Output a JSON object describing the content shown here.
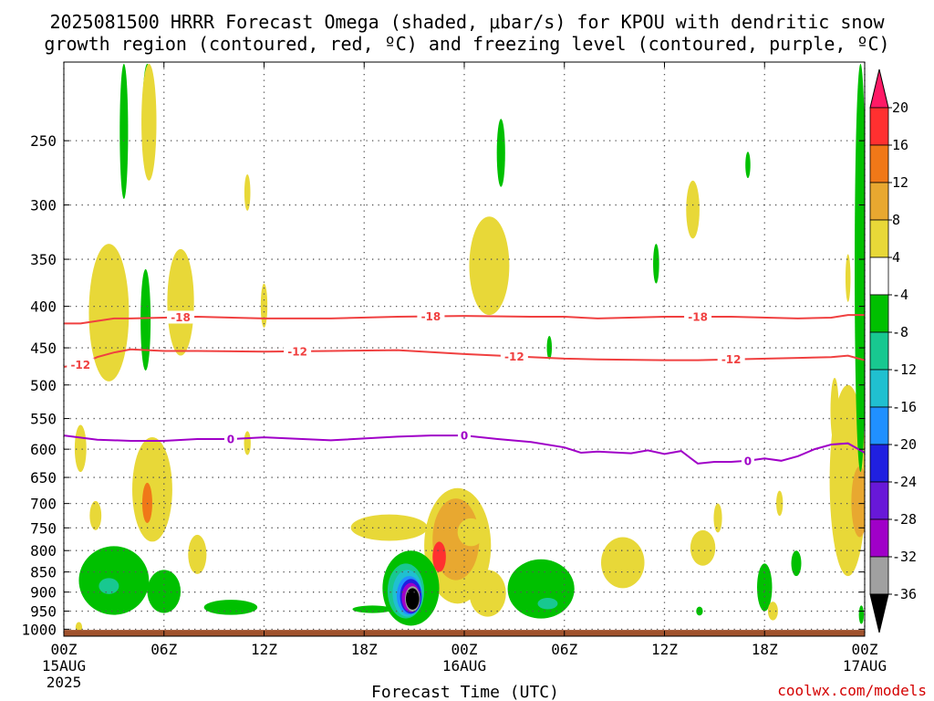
{
  "chart_data": {
    "type": "heatmap",
    "title_lines": [
      "2025081500 HRRR Forecast Omega (shaded, μbar/s) for KPOU with dendritic snow",
      "growth region (contoured, red, ºC) and freezing level (contoured, purple, ºC)"
    ],
    "xlabel": "Forecast Time (UTC)",
    "ylabel": "",
    "credit": "coolwx.com/models",
    "x_ticks": [
      {
        "hour": 0,
        "label": "00Z",
        "sub": "15AUG",
        "sub2": "2025"
      },
      {
        "hour": 6,
        "label": "06Z"
      },
      {
        "hour": 12,
        "label": "12Z"
      },
      {
        "hour": 18,
        "label": "18Z"
      },
      {
        "hour": 24,
        "label": "00Z",
        "sub": "16AUG"
      },
      {
        "hour": 30,
        "label": "06Z"
      },
      {
        "hour": 36,
        "label": "12Z"
      },
      {
        "hour": 42,
        "label": "18Z"
      },
      {
        "hour": 48,
        "label": "00Z",
        "sub": "17AUG"
      }
    ],
    "xlim": [
      0,
      48
    ],
    "y_ticks": [
      250,
      300,
      350,
      400,
      450,
      500,
      550,
      600,
      650,
      700,
      750,
      800,
      850,
      900,
      950,
      1000
    ],
    "ylim": [
      1020,
      200
    ],
    "y_scale": "log-pressure",
    "grid": true,
    "colorbar": {
      "labels": [
        "20",
        "16",
        "12",
        "8",
        "4",
        "-4",
        "-8",
        "-12",
        "-16",
        "-20",
        "-24",
        "-28",
        "-32",
        "-36"
      ],
      "colors": [
        "#ff1a66",
        "#ff3030",
        "#f07818",
        "#e8a830",
        "#e8d838",
        "#ffffff",
        "#00c000",
        "#18c890",
        "#20c0d0",
        "#2090ff",
        "#2020e0",
        "#6818d8",
        "#a000c8",
        "#a0a0a0",
        "#000000"
      ]
    },
    "series": [
      {
        "name": "-18",
        "color": "#f04040",
        "x": [
          0,
          1,
          3,
          4,
          6,
          8,
          12,
          16,
          20,
          24,
          28,
          30,
          32,
          36,
          40,
          44,
          46,
          47,
          48
        ],
        "y": [
          420,
          420,
          414,
          414,
          413,
          412,
          414,
          414,
          412,
          411,
          412,
          412,
          414,
          412,
          412,
          414,
          413,
          410,
          410
        ],
        "labels_at": [
          7,
          22,
          38
        ]
      },
      {
        "name": "-12",
        "color": "#f04040",
        "x": [
          0,
          1,
          2,
          3,
          4,
          6,
          8,
          12,
          16,
          20,
          24,
          28,
          30,
          32,
          36,
          38,
          40,
          44,
          46,
          47,
          48
        ],
        "y": [
          475,
          472,
          462,
          456,
          452,
          454,
          454,
          455,
          454,
          453,
          458,
          462,
          464,
          465,
          466,
          466,
          465,
          463,
          462,
          460,
          466
        ],
        "labels_at": [
          1,
          14,
          27,
          40
        ]
      },
      {
        "name": "0",
        "color": "#a000c8",
        "x": [
          0,
          2,
          4,
          6,
          8,
          10,
          12,
          16,
          20,
          22,
          24,
          26,
          28,
          30,
          31,
          32,
          34,
          35,
          36,
          37,
          38,
          39,
          40,
          41,
          42,
          43,
          44,
          45,
          46,
          47,
          48
        ],
        "y": [
          577,
          584,
          586,
          586,
          583,
          583,
          580,
          585,
          579,
          577,
          577,
          583,
          588,
          597,
          606,
          604,
          607,
          602,
          608,
          603,
          625,
          622,
          622,
          620,
          616,
          620,
          612,
          600,
          592,
          590,
          606
        ],
        "labels_at": [
          10,
          24,
          41
        ]
      }
    ],
    "omega_features": [
      {
        "band": "-4",
        "x": 3.6,
        "y": 240,
        "rx": 0.25,
        "ry": 55
      },
      {
        "band": "-4",
        "x": 5.0,
        "y": 230,
        "rx": 0.3,
        "ry": 45
      },
      {
        "band": "4",
        "x": 5.1,
        "y": 235,
        "rx": 0.45,
        "ry": 45
      },
      {
        "band": "4",
        "x": 11.0,
        "y": 290,
        "rx": 0.18,
        "ry": 15
      },
      {
        "band": "-4",
        "x": 26.2,
        "y": 260,
        "rx": 0.25,
        "ry": 25
      },
      {
        "band": "4",
        "x": 25.5,
        "y": 360,
        "rx": 1.2,
        "ry": 50
      },
      {
        "band": "4",
        "x": 37.7,
        "y": 305,
        "rx": 0.4,
        "ry": 25
      },
      {
        "band": "-4",
        "x": 41.0,
        "y": 268,
        "rx": 0.15,
        "ry": 10
      },
      {
        "band": "-4",
        "x": 35.5,
        "y": 355,
        "rx": 0.18,
        "ry": 20
      },
      {
        "band": "4",
        "x": 2.7,
        "y": 415,
        "rx": 1.2,
        "ry": 80
      },
      {
        "band": "-4",
        "x": 4.9,
        "y": 420,
        "rx": 0.3,
        "ry": 60
      },
      {
        "band": "4",
        "x": 7.0,
        "y": 400,
        "rx": 0.8,
        "ry": 60
      },
      {
        "band": "4",
        "x": 12.0,
        "y": 400,
        "rx": 0.2,
        "ry": 25
      },
      {
        "band": "-4",
        "x": 29.1,
        "y": 450,
        "rx": 0.15,
        "ry": 15
      },
      {
        "band": "4",
        "x": 1.0,
        "y": 600,
        "rx": 0.35,
        "ry": 40
      },
      {
        "band": "4",
        "x": 11.0,
        "y": 590,
        "rx": 0.2,
        "ry": 20
      },
      {
        "band": "4",
        "x": 5.3,
        "y": 680,
        "rx": 1.2,
        "ry": 100
      },
      {
        "band": "12",
        "x": 5.0,
        "y": 700,
        "rx": 0.3,
        "ry": 40
      },
      {
        "band": "4",
        "x": 1.9,
        "y": 725,
        "rx": 0.35,
        "ry": 30
      },
      {
        "band": "4",
        "x": 8.0,
        "y": 810,
        "rx": 0.55,
        "ry": 45
      },
      {
        "band": "-4",
        "x": 3.0,
        "y": 875,
        "rx": 2.1,
        "ry": 85
      },
      {
        "band": "-8",
        "x": 2.7,
        "y": 885,
        "rx": 0.6,
        "ry": 20
      },
      {
        "band": "-4",
        "x": 6.0,
        "y": 900,
        "rx": 1.0,
        "ry": 55
      },
      {
        "band": "-4",
        "x": 10.0,
        "y": 940,
        "rx": 1.6,
        "ry": 20
      },
      {
        "band": "4",
        "x": 0.9,
        "y": 995,
        "rx": 0.2,
        "ry": 15
      },
      {
        "band": "4",
        "x": 19.5,
        "y": 750,
        "rx": 2.3,
        "ry": 28
      },
      {
        "band": "4",
        "x": 23.6,
        "y": 800,
        "rx": 2.0,
        "ry": 130
      },
      {
        "band": "8",
        "x": 23.5,
        "y": 780,
        "rx": 1.4,
        "ry": 90
      },
      {
        "band": "16",
        "x": 22.5,
        "y": 815,
        "rx": 0.4,
        "ry": 35
      },
      {
        "band": "4",
        "x": 25.4,
        "y": 905,
        "rx": 1.1,
        "ry": 60
      },
      {
        "band": "4",
        "x": 24.4,
        "y": 760,
        "rx": 0.8,
        "ry": 30
      },
      {
        "band": "-4",
        "x": 18.5,
        "y": 945,
        "rx": 1.2,
        "ry": 10
      },
      {
        "band": "-4",
        "x": 20.8,
        "y": 895,
        "rx": 1.7,
        "ry": 95
      },
      {
        "band": "-8",
        "x": 20.5,
        "y": 900,
        "rx": 1.1,
        "ry": 70
      },
      {
        "band": "-12",
        "x": 20.6,
        "y": 905,
        "rx": 0.9,
        "ry": 60
      },
      {
        "band": "-16",
        "x": 20.7,
        "y": 910,
        "rx": 0.75,
        "ry": 50
      },
      {
        "band": "-20",
        "x": 20.8,
        "y": 912,
        "rx": 0.65,
        "ry": 45
      },
      {
        "band": "-28",
        "x": 20.8,
        "y": 915,
        "rx": 0.55,
        "ry": 38
      },
      {
        "band": "-32",
        "x": 20.9,
        "y": 918,
        "rx": 0.45,
        "ry": 33
      },
      {
        "band": "-36",
        "x": 20.9,
        "y": 918,
        "rx": 0.4,
        "ry": 28
      },
      {
        "band": "-4",
        "x": 28.6,
        "y": 895,
        "rx": 2.0,
        "ry": 75
      },
      {
        "band": "-8",
        "x": 29.0,
        "y": 930,
        "rx": 0.6,
        "ry": 15
      },
      {
        "band": "4",
        "x": 33.5,
        "y": 830,
        "rx": 1.3,
        "ry": 60
      },
      {
        "band": "4",
        "x": 38.3,
        "y": 795,
        "rx": 0.75,
        "ry": 40
      },
      {
        "band": "4",
        "x": 39.2,
        "y": 730,
        "rx": 0.25,
        "ry": 30
      },
      {
        "band": "-4",
        "x": 42.0,
        "y": 890,
        "rx": 0.45,
        "ry": 60
      },
      {
        "band": "4",
        "x": 42.5,
        "y": 950,
        "rx": 0.3,
        "ry": 25
      },
      {
        "band": "-4",
        "x": 43.9,
        "y": 830,
        "rx": 0.3,
        "ry": 30
      },
      {
        "band": "4",
        "x": 42.9,
        "y": 700,
        "rx": 0.2,
        "ry": 25
      },
      {
        "band": "-4",
        "x": 38.1,
        "y": 950,
        "rx": 0.2,
        "ry": 12
      },
      {
        "band": "4",
        "x": 47.0,
        "y": 680,
        "rx": 1.1,
        "ry": 180
      },
      {
        "band": "8",
        "x": 47.7,
        "y": 700,
        "rx": 0.5,
        "ry": 70
      },
      {
        "band": "4",
        "x": 46.2,
        "y": 540,
        "rx": 0.25,
        "ry": 50
      },
      {
        "band": "-4",
        "x": 47.75,
        "y": 420,
        "rx": 0.35,
        "ry": 220
      },
      {
        "band": "4",
        "x": 47.0,
        "y": 370,
        "rx": 0.15,
        "ry": 25
      },
      {
        "band": "-4",
        "x": 47.8,
        "y": 960,
        "rx": 0.15,
        "ry": 25
      }
    ]
  }
}
